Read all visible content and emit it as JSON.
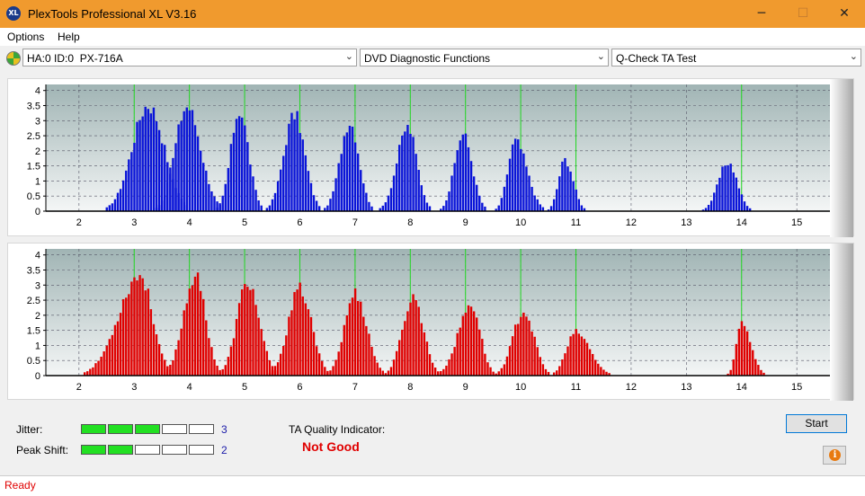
{
  "window": {
    "title": "PlexTools Professional XL V3.16",
    "icon_text": "XL",
    "minimize": "─",
    "maximize": "☐",
    "close": "✕"
  },
  "menu": {
    "options": "Options",
    "help": "Help"
  },
  "toolbar": {
    "drive": "HA:0 ID:0  PX-716A",
    "function": "DVD Diagnostic Functions",
    "test": "Q-Check TA Test",
    "arrow": "⌄"
  },
  "colors": {
    "top_bars": "#0a14d8",
    "bottom_bars": "#e00000",
    "green_lines": "#22d822"
  },
  "chart_data": [
    {
      "type": "bar",
      "name": "land",
      "x_ticks": [
        2,
        3,
        4,
        5,
        6,
        7,
        8,
        9,
        10,
        11,
        12,
        13,
        14,
        15
      ],
      "y_ticks": [
        0,
        0.5,
        1,
        1.5,
        2,
        2.5,
        3,
        3.5,
        4
      ],
      "xlim": [
        1.4,
        15.6
      ],
      "ylim": [
        0,
        4.2
      ],
      "green_lines": [
        3,
        4,
        5,
        6,
        7,
        8,
        9,
        10,
        11,
        14
      ],
      "peaks": [
        {
          "center": 3.25,
          "height": 3.8,
          "min": 2.5,
          "max": 3.95
        },
        {
          "center": 3.95,
          "height": 3.75,
          "min": 3.4,
          "max": 4.55
        },
        {
          "center": 4.9,
          "height": 3.6,
          "min": 4.5,
          "max": 5.3
        },
        {
          "center": 5.9,
          "height": 3.45,
          "min": 5.4,
          "max": 6.35
        },
        {
          "center": 6.9,
          "height": 3.2,
          "min": 6.45,
          "max": 7.3
        },
        {
          "center": 7.95,
          "height": 3.0,
          "min": 7.45,
          "max": 8.35
        },
        {
          "center": 8.95,
          "height": 2.75,
          "min": 8.55,
          "max": 9.35
        },
        {
          "center": 9.9,
          "height": 2.5,
          "min": 9.55,
          "max": 10.4
        },
        {
          "center": 10.8,
          "height": 1.85,
          "min": 10.5,
          "max": 11.15
        },
        {
          "center": 13.75,
          "height": 1.75,
          "min": 13.3,
          "max": 14.15
        }
      ]
    },
    {
      "type": "bar",
      "name": "pit",
      "x_ticks": [
        2,
        3,
        4,
        5,
        6,
        7,
        8,
        9,
        10,
        11,
        12,
        13,
        14,
        15
      ],
      "y_ticks": [
        0,
        0.5,
        1,
        1.5,
        2,
        2.5,
        3,
        3.5,
        4
      ],
      "xlim": [
        1.4,
        15.6
      ],
      "ylim": [
        0,
        4.2
      ],
      "green_lines": [
        3,
        4,
        5,
        6,
        7,
        8,
        9,
        10,
        11,
        14
      ],
      "peaks": [
        {
          "center": 3.1,
          "height": 3.6,
          "min": 2.1,
          "max": 3.65
        },
        {
          "center": 4.1,
          "height": 3.55,
          "min": 3.55,
          "max": 4.55
        },
        {
          "center": 5.05,
          "height": 3.35,
          "min": 4.55,
          "max": 5.55
        },
        {
          "center": 6.0,
          "height": 3.1,
          "min": 5.45,
          "max": 6.5
        },
        {
          "center": 7.0,
          "height": 2.95,
          "min": 6.5,
          "max": 7.5
        },
        {
          "center": 8.05,
          "height": 2.8,
          "min": 7.55,
          "max": 8.5
        },
        {
          "center": 9.1,
          "height": 2.55,
          "min": 8.5,
          "max": 9.5
        },
        {
          "center": 10.05,
          "height": 2.3,
          "min": 9.55,
          "max": 10.5
        },
        {
          "center": 11.0,
          "height": 1.55,
          "min": 10.55,
          "max": 11.6
        },
        {
          "center": 14.0,
          "height": 1.9,
          "min": 13.75,
          "max": 14.4
        }
      ]
    }
  ],
  "jitter": {
    "label": "Jitter:",
    "value": "3",
    "level": 3,
    "segments": 5
  },
  "peak_shift": {
    "label": "Peak Shift:",
    "value": "2",
    "level": 2,
    "segments": 5
  },
  "ta_quality": {
    "label": "TA Quality Indicator:",
    "value": "Not Good"
  },
  "start_button": "Start",
  "info_icon": "i",
  "status": "Ready"
}
